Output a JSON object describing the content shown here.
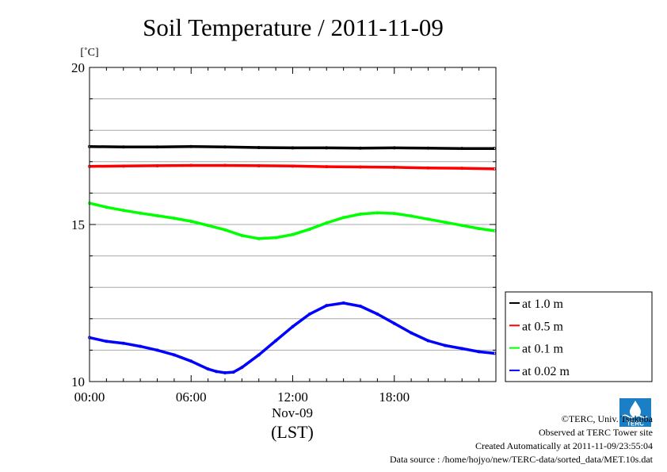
{
  "chart_data": {
    "type": "line",
    "title": "Soil Temperature / 2011-11-09",
    "ylabel": "[˚C]",
    "xlabel_date": "Nov-09",
    "xlabel": "(LST)",
    "x_ticks": [
      "00:00",
      "06:00",
      "12:00",
      "18:00"
    ],
    "y_ticks": [
      "10",
      "15",
      "20"
    ],
    "xlim": [
      0,
      24
    ],
    "ylim": [
      10,
      20
    ],
    "grid": true,
    "legend_position": "right",
    "series": [
      {
        "name": "at 1.0 m",
        "color": "#000000",
        "x": [
          0,
          2,
          4,
          6,
          8,
          10,
          12,
          14,
          16,
          18,
          20,
          22,
          23.9
        ],
        "y": [
          17.48,
          17.47,
          17.47,
          17.48,
          17.47,
          17.45,
          17.44,
          17.44,
          17.43,
          17.44,
          17.43,
          17.42,
          17.42
        ]
      },
      {
        "name": "at 0.5 m",
        "color": "#ff0000",
        "x": [
          0,
          2,
          4,
          6,
          8,
          10,
          12,
          14,
          16,
          18,
          20,
          22,
          23.9
        ],
        "y": [
          16.85,
          16.86,
          16.87,
          16.88,
          16.88,
          16.87,
          16.86,
          16.84,
          16.83,
          16.82,
          16.8,
          16.79,
          16.77
        ]
      },
      {
        "name": "at 0.1 m",
        "color": "#00ff00",
        "x": [
          0,
          1,
          2,
          3,
          4,
          5,
          6,
          7,
          8,
          9,
          10,
          11,
          12,
          13,
          14,
          15,
          16,
          17,
          18,
          19,
          20,
          21,
          22,
          23,
          23.9
        ],
        "y": [
          15.68,
          15.55,
          15.45,
          15.36,
          15.28,
          15.2,
          15.1,
          14.97,
          14.83,
          14.65,
          14.55,
          14.58,
          14.68,
          14.85,
          15.05,
          15.22,
          15.33,
          15.37,
          15.35,
          15.27,
          15.17,
          15.07,
          14.97,
          14.87,
          14.8
        ]
      },
      {
        "name": "at 0.02 m",
        "color": "#0000ff",
        "x": [
          0,
          1,
          2,
          3,
          4,
          5,
          6,
          7,
          7.5,
          8,
          8.5,
          9,
          10,
          11,
          12,
          13,
          14,
          15,
          16,
          17,
          18,
          19,
          20,
          21,
          22,
          23,
          23.9
        ],
        "y": [
          11.4,
          11.28,
          11.22,
          11.12,
          11.0,
          10.85,
          10.65,
          10.4,
          10.32,
          10.28,
          10.3,
          10.45,
          10.85,
          11.3,
          11.75,
          12.15,
          12.42,
          12.5,
          12.4,
          12.15,
          11.85,
          11.55,
          11.3,
          11.15,
          11.05,
          10.95,
          10.9
        ]
      }
    ]
  },
  "credits": {
    "copyright": "©TERC, Univ. Tsukuba",
    "site": "Observed at TERC Tower site",
    "created": "Created Automatically at 2011-11-09/23:55:04",
    "source": "Data source : /home/hojyo/new/TERC-data/sorted_data/MET.10s.dat"
  },
  "logo": {
    "text": "TERC",
    "color": "#1a7fc4",
    "icon": "terc-logo-icon"
  }
}
